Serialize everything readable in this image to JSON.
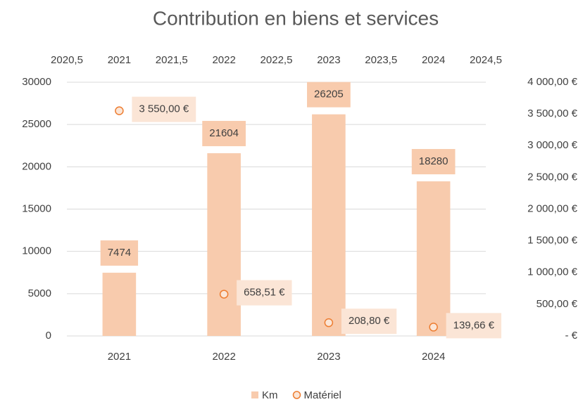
{
  "chart_data": {
    "type": "bar",
    "title": "Contribution en biens et services",
    "categories": [
      "2021",
      "2022",
      "2023",
      "2024"
    ],
    "ylim": [
      0,
      30000
    ],
    "yticks": [
      0,
      5000,
      10000,
      15000,
      20000,
      25000,
      30000
    ],
    "y2lim": [
      0,
      4000
    ],
    "y2ticks": [
      {
        "value": 0,
        "label": "- €"
      },
      {
        "value": 500,
        "label": "500,00 €"
      },
      {
        "value": 1000,
        "label": "1 000,00 €"
      },
      {
        "value": 1500,
        "label": "1 500,00 €"
      },
      {
        "value": 2000,
        "label": "2 000,00 €"
      },
      {
        "value": 2500,
        "label": "2 500,00 €"
      },
      {
        "value": 3000,
        "label": "3 000,00 €"
      },
      {
        "value": 3500,
        "label": "3 500,00 €"
      },
      {
        "value": 4000,
        "label": "4 000,00 €"
      }
    ],
    "x2lim": [
      2020.5,
      2024.5
    ],
    "x2ticks": [
      {
        "value": 2020.5,
        "label": "2020,5"
      },
      2021,
      {
        "value": 2021.5,
        "label": "2021,5"
      },
      2022,
      {
        "value": 2022.5,
        "label": "2022,5"
      },
      2023,
      {
        "value": 2023.5,
        "label": "2023,5"
      },
      2024,
      {
        "value": 2024.5,
        "label": "2024,5"
      }
    ],
    "grid": true,
    "legend": "bottom",
    "series": [
      {
        "name": "Km",
        "type": "bar",
        "color": "#f8cbad",
        "values": [
          7474,
          21604,
          26205,
          18280
        ]
      },
      {
        "name": "Matériel",
        "type": "scatter",
        "axis": "y2",
        "color": "#ed7d31",
        "x": [
          2021,
          2022,
          2023,
          2024
        ],
        "values": [
          3550,
          658.51,
          208.8,
          139.66
        ],
        "value_labels": [
          "3 550,00 €",
          "658,51 €",
          "208,80 €",
          "139,66 €"
        ]
      }
    ]
  }
}
